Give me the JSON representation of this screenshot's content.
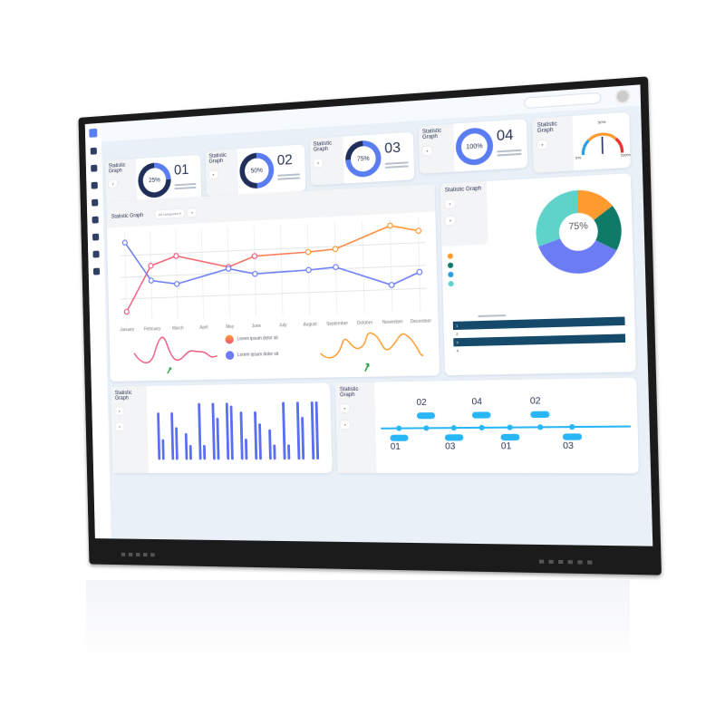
{
  "colors": {
    "bezel": "#1b1b1b",
    "accent": "#5a7df2",
    "orange": "#ff9a2e",
    "pink": "#f0567f",
    "blue": "#6b7cf5",
    "teal": "#5fd3c9",
    "dark_green": "#0f7a68",
    "table_dark": "#154a6b",
    "timeline": "#29b6f6"
  },
  "sidebar": {
    "icons": [
      "logo-icon",
      "user-icon",
      "chart-icon",
      "chat-icon",
      "graph-icon",
      "search-icon",
      "mail-icon",
      "settings-icon",
      "users-icon"
    ]
  },
  "stat_cards": [
    {
      "title": "Statistic Graph",
      "percent": "25%",
      "number": "01",
      "value": 0.25
    },
    {
      "title": "Statistic Graph",
      "percent": "50%",
      "number": "02",
      "value": 0.5
    },
    {
      "title": "Statistic Graph",
      "percent": "75%",
      "number": "03",
      "value": 0.75
    },
    {
      "title": "Statistic Graph",
      "percent": "100%",
      "number": "04",
      "value": 1.0
    }
  ],
  "gauge": {
    "title": "Statistic Graph",
    "min_label": "0%",
    "max_label": "100%",
    "mid_label": "50%",
    "value": 0.5
  },
  "line_chart": {
    "title": "Statistic Graph",
    "filter1": "All categories",
    "chart_data": {
      "type": "line",
      "x_labels": [
        "January",
        "February",
        "March",
        "April",
        "May",
        "June",
        "July",
        "August",
        "September",
        "October",
        "November",
        "December"
      ],
      "x": [
        0,
        1,
        2,
        4,
        5,
        7,
        8,
        10,
        11
      ],
      "series": [
        {
          "color": "#f0567f",
          "values": [
            10,
            62,
            72,
            57,
            68,
            70,
            72,
            95,
            88
          ]
        },
        {
          "color": "#6b7cf5",
          "values": [
            90,
            45,
            40,
            55,
            48,
            50,
            52,
            30,
            43
          ]
        }
      ],
      "ylim": [
        0,
        100
      ],
      "grid": true
    },
    "legend": [
      "Lorem ipsum dolor sit",
      "Lorem ipsum dolor sit"
    ]
  },
  "donut": {
    "title": "Statistic Graph",
    "center_label": "75%",
    "chart_data": {
      "type": "pie",
      "values": [
        15,
        18,
        37,
        30
      ],
      "colors": [
        "#ff9a2e",
        "#0f7a68",
        "#6b7cf5",
        "#5fd3c9"
      ]
    },
    "table_rows": [
      "1",
      "2",
      "3",
      "4"
    ]
  },
  "bar_chart": {
    "title": "Statistic Graph",
    "chart_data": {
      "type": "bar",
      "series": [
        {
          "values": [
            0.8,
            0.8,
            0.45,
            0.95,
            0.95,
            0.95,
            0.8,
            0.8,
            0.5,
            0.95,
            0.95,
            0.95
          ]
        },
        {
          "values": [
            0.35,
            0.55,
            0.25,
            0.25,
            0.7,
            0.9,
            0.35,
            0.6,
            0.25,
            0.25,
            0.7,
            0.95
          ]
        }
      ],
      "ylim": [
        0,
        1
      ]
    }
  },
  "timeline": {
    "title": "Statistic Graph",
    "numbers_top": [
      "02",
      "04",
      "02"
    ],
    "numbers_bottom": [
      "01",
      "03",
      "01",
      "03"
    ]
  }
}
